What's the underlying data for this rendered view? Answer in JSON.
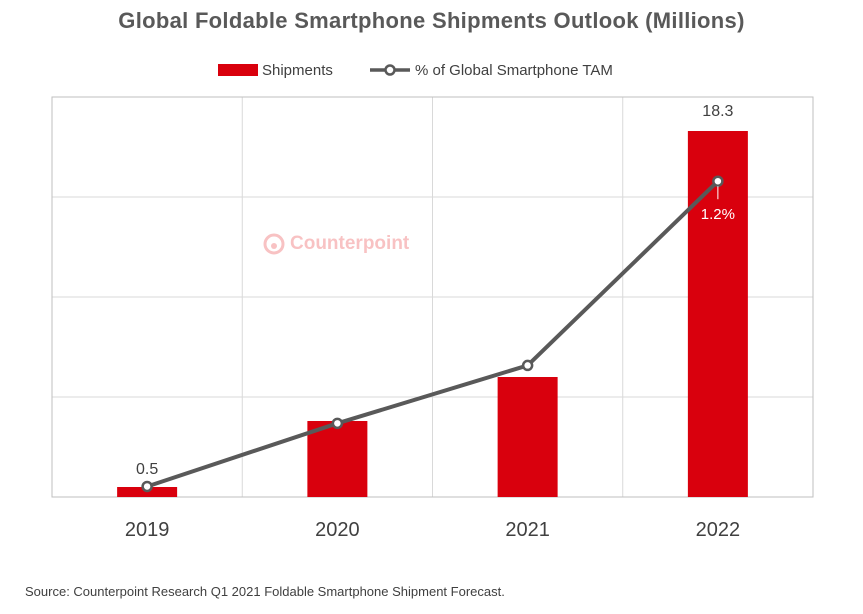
{
  "colors": {
    "bar": "#d9000d",
    "line": "#595959",
    "grid": "#d9d9d9",
    "frame": "#bfbfbf",
    "marker_fill": "#ffffff",
    "watermark": "#e8282b"
  },
  "watermark": "Counterpoint",
  "source": "Source: Counterpoint Research Q1 2021 Foldable Smartphone Shipment Forecast.",
  "chart_data": {
    "type": "bar",
    "title": "Global Foldable Smartphone Shipments Outlook (Millions)",
    "categories": [
      "2019",
      "2020",
      "2021",
      "2022"
    ],
    "series": [
      {
        "name": "Shipments",
        "type": "bar",
        "values": [
          0.5,
          3.8,
          6.0,
          18.3
        ],
        "data_labels": [
          "0.5",
          "",
          "",
          "18.3"
        ]
      },
      {
        "name": "% of Global Smartphone TAM",
        "type": "line",
        "values": [
          0.04,
          0.28,
          0.5,
          1.2
        ],
        "data_labels": [
          "",
          "",
          "",
          "1.2%"
        ]
      }
    ],
    "ylim": [
      0,
      20
    ],
    "y2lim": [
      0,
      1.52
    ],
    "legend_position": "top",
    "grid": true
  }
}
